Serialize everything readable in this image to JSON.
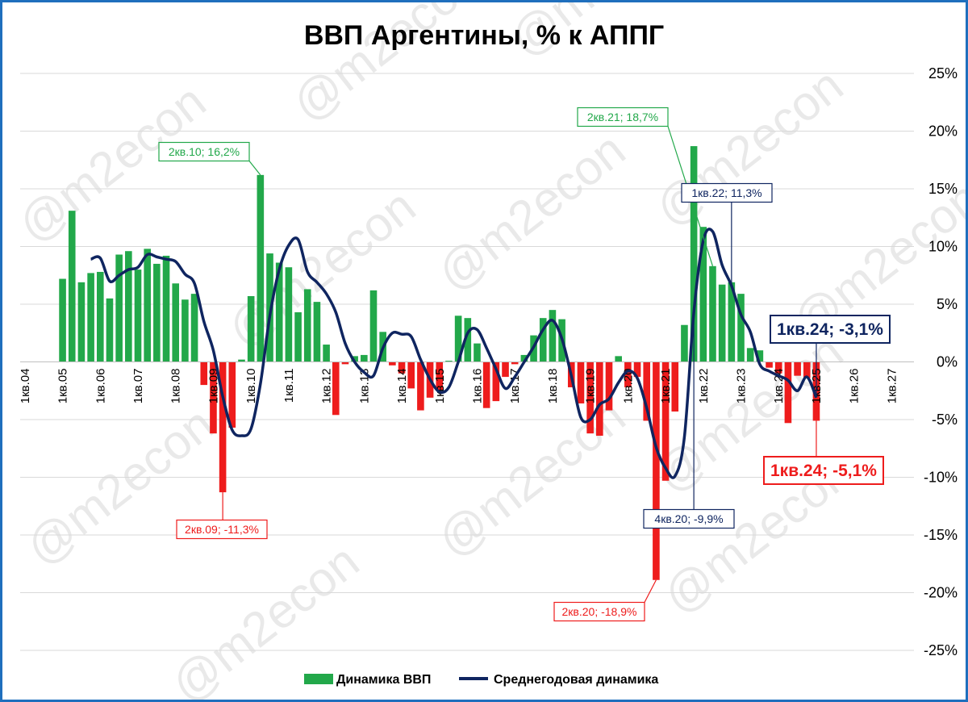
{
  "chart_data": {
    "type": "bar",
    "title": "ВВП Аргентины, % к АППГ",
    "ylim": [
      -25,
      25
    ],
    "yticks": [
      "25%",
      "20%",
      "15%",
      "10%",
      "5%",
      "0%",
      "-5%",
      "-10%",
      "-15%",
      "-20%",
      "-25%"
    ],
    "grid": true,
    "legend_position": "bottom",
    "x_tick_labels": [
      "1кв.04",
      "1кв.05",
      "1кв.06",
      "1кв.07",
      "1кв.08",
      "1кв.09",
      "1кв.10",
      "1кв.11",
      "1кв.12",
      "1кв.13",
      "1кв.14",
      "1кв.15",
      "1кв.16",
      "1кв.17",
      "1кв.18",
      "1кв.19",
      "1кв.20",
      "1кв.21",
      "1кв.22",
      "1кв.23",
      "1кв.24",
      "1кв.25",
      "1кв.26",
      "1кв.27"
    ],
    "series": [
      {
        "name": "Динамика ВВП",
        "kind": "bar",
        "color_positive": "#22a84a",
        "color_negative": "#ee1c1c",
        "values": [
          null,
          null,
          null,
          null,
          7.2,
          13.1,
          6.9,
          7.7,
          7.8,
          5.5,
          9.3,
          9.6,
          8.0,
          9.8,
          8.5,
          9.2,
          6.8,
          5.4,
          5.9,
          -2.0,
          -6.2,
          -11.3,
          -5.7,
          0.2,
          5.7,
          16.2,
          9.4,
          8.6,
          8.2,
          4.3,
          6.3,
          5.2,
          1.5,
          -4.6,
          -0.2,
          0.5,
          0.6,
          6.2,
          2.6,
          -0.3,
          -1.0,
          -2.3,
          -4.2,
          -3.1,
          -2.5,
          0.1,
          4.0,
          3.8,
          1.6,
          -4.0,
          -3.4,
          -1.3,
          -0.2,
          0.6,
          2.3,
          3.8,
          4.5,
          3.7,
          -2.2,
          -3.6,
          -6.2,
          -6.4,
          -4.2,
          0.5,
          -2.2,
          -1.3,
          -5.1,
          -18.9,
          -10.3,
          -4.3,
          3.2,
          18.7,
          11.7,
          8.3,
          6.7,
          6.9,
          5.9,
          1.2,
          1.0,
          -0.5,
          -1.0,
          -5.3,
          -1.2,
          -1.4,
          -5.1
        ]
      },
      {
        "name": "Среднегодовая динамика",
        "kind": "line",
        "color": "#0f2560",
        "values": [
          null,
          null,
          null,
          null,
          null,
          null,
          null,
          8.9,
          9.0,
          7.0,
          7.5,
          8.0,
          8.2,
          9.3,
          9.1,
          8.9,
          8.7,
          7.6,
          6.8,
          3.5,
          1.0,
          -3.0,
          -5.9,
          -6.4,
          -5.8,
          -1.9,
          4.0,
          8.0,
          10.1,
          10.6,
          7.8,
          6.9,
          5.9,
          4.3,
          1.6,
          0.0,
          -0.9,
          -1.2,
          1.2,
          2.5,
          2.4,
          2.2,
          0.2,
          -1.5,
          -2.6,
          -2.2,
          0.0,
          2.5,
          2.8,
          1.2,
          -0.6,
          -2.3,
          -1.3,
          0.0,
          1.3,
          2.8,
          3.6,
          2.0,
          -1.2,
          -4.8,
          -5.0,
          -3.7,
          -3.2,
          -1.8,
          -0.8,
          -1.4,
          -4.0,
          -7.4,
          -9.2,
          -9.9,
          -6.5,
          4.3,
          10.5,
          11.3,
          8.4,
          6.6,
          4.1,
          2.6,
          -0.2,
          -0.8,
          -1.2,
          -1.6,
          -2.5,
          -1.3,
          -3.1
        ]
      }
    ],
    "annotations": [
      {
        "text": "2кв.10; 16,2%",
        "series": 0,
        "index": 25,
        "color": "#22a84a",
        "size": "normal"
      },
      {
        "text": "2кв.09; -11,3%",
        "series": 0,
        "index": 21,
        "color": "#ee1c1c",
        "size": "normal"
      },
      {
        "text": "2кв.21; 18,7%",
        "series": 0,
        "index": 73,
        "color": "#22a84a",
        "size": "normal"
      },
      {
        "text": "1кв.22; 11,3%",
        "series": 1,
        "index": 75,
        "color": "#0f2560",
        "size": "normal"
      },
      {
        "text": "4кв.20; -9,9%",
        "series": 1,
        "index": 71,
        "color": "#0f2560",
        "size": "normal"
      },
      {
        "text": "2кв.20; -18,9%",
        "series": 0,
        "index": 67,
        "color": "#ee1c1c",
        "size": "normal"
      },
      {
        "text": "1кв.24; -3,1%",
        "series": 1,
        "index": 84,
        "color": "#0f2560",
        "size": "big"
      },
      {
        "text": "1кв.24; -5,1%",
        "series": 0,
        "index": 84,
        "color": "#ee1c1c",
        "size": "big"
      }
    ]
  },
  "watermark": "@m2econ"
}
